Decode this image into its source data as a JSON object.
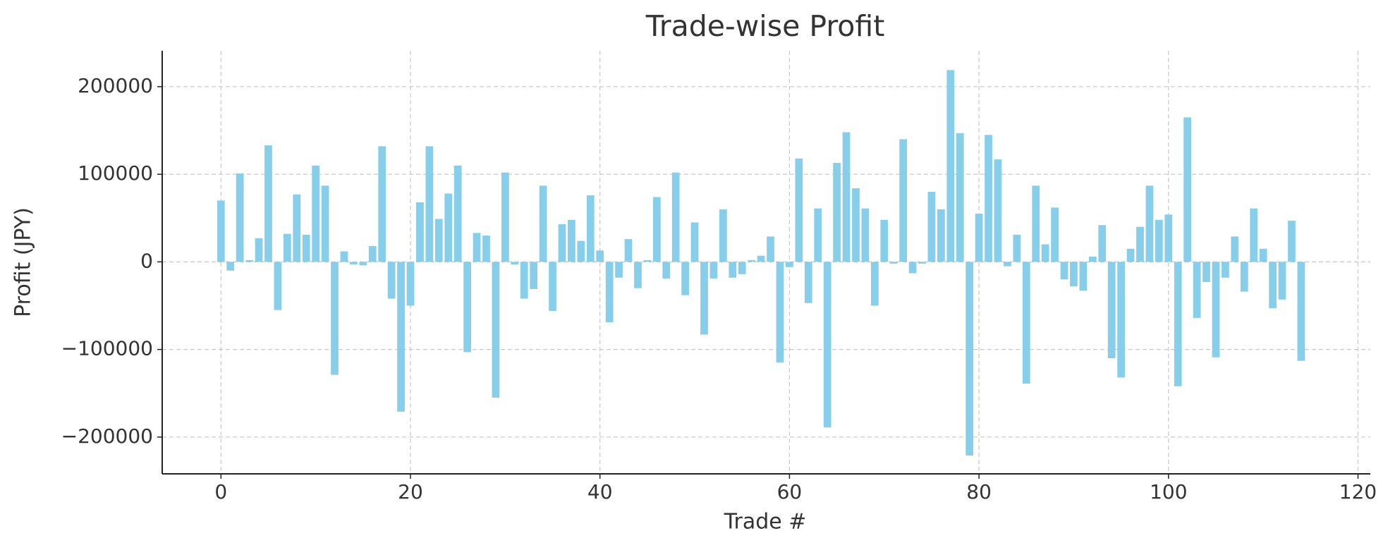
{
  "chart_data": {
    "type": "bar",
    "title": "Trade-wise Profit",
    "xlabel": "Trade #",
    "ylabel": "Profit (JPY)",
    "x": [
      0,
      1,
      2,
      3,
      4,
      5,
      6,
      7,
      8,
      9,
      10,
      11,
      12,
      13,
      14,
      15,
      16,
      17,
      18,
      19,
      20,
      21,
      22,
      23,
      24,
      25,
      26,
      27,
      28,
      29,
      30,
      31,
      32,
      33,
      34,
      35,
      36,
      37,
      38,
      39,
      40,
      41,
      42,
      43,
      44,
      45,
      46,
      47,
      48,
      49,
      50,
      51,
      52,
      53,
      54,
      55,
      56,
      57,
      58,
      59,
      60,
      61,
      62,
      63,
      64,
      65,
      66,
      67,
      68,
      69,
      70,
      71,
      72,
      73,
      74,
      75,
      76,
      77,
      78,
      79,
      80,
      81,
      82,
      83,
      84,
      85,
      86,
      87,
      88,
      89,
      90,
      91,
      92,
      93,
      94,
      95,
      96,
      97,
      98,
      99,
      100,
      101,
      102,
      103,
      104,
      105,
      106,
      107,
      108,
      109,
      110,
      111,
      112,
      113,
      114
    ],
    "values": [
      70000,
      -10000,
      101000,
      2000,
      27000,
      133000,
      -55000,
      32000,
      77000,
      31000,
      110000,
      87000,
      -129000,
      12000,
      -3000,
      -4000,
      18000,
      132000,
      -42000,
      -171000,
      -50000,
      68000,
      132000,
      49000,
      78000,
      110000,
      -103000,
      33000,
      30000,
      -155000,
      102000,
      -3000,
      -42000,
      -31000,
      87000,
      -56000,
      43000,
      48000,
      24000,
      76000,
      13000,
      -69000,
      -18000,
      26000,
      -30000,
      2000,
      74000,
      -19000,
      102000,
      -38000,
      45000,
      -83000,
      -19000,
      60000,
      -18000,
      -14000,
      2000,
      7000,
      29000,
      -115000,
      -6000,
      118000,
      -47000,
      61000,
      -189000,
      113000,
      148000,
      84000,
      61000,
      -50000,
      48000,
      -2000,
      140000,
      -13000,
      -2000,
      80000,
      60000,
      219000,
      147000,
      -221000,
      55000,
      145000,
      117000,
      -5000,
      31000,
      -139000,
      87000,
      20000,
      62000,
      -20000,
      -28000,
      -33000,
      6000,
      42000,
      -110000,
      -132000,
      15000,
      40000,
      87000,
      48000,
      54000,
      -142000,
      165000,
      -64000,
      -23000,
      -109000,
      -18000,
      29000,
      -34000,
      61000,
      15000,
      -53000,
      -43000,
      47000,
      -113000
    ],
    "color": "#87ceeb",
    "bar_width": 0.8,
    "xlim": [
      -6.2,
      121.3
    ],
    "xticks": [
      0,
      20,
      40,
      60,
      80,
      100,
      120
    ],
    "ylim": [
      -242000,
      241000
    ],
    "yticks": [
      {
        "value": -200000,
        "label": "−200000"
      },
      {
        "value": -100000,
        "label": "−100000"
      },
      0,
      100000,
      200000
    ],
    "grid": true
  }
}
